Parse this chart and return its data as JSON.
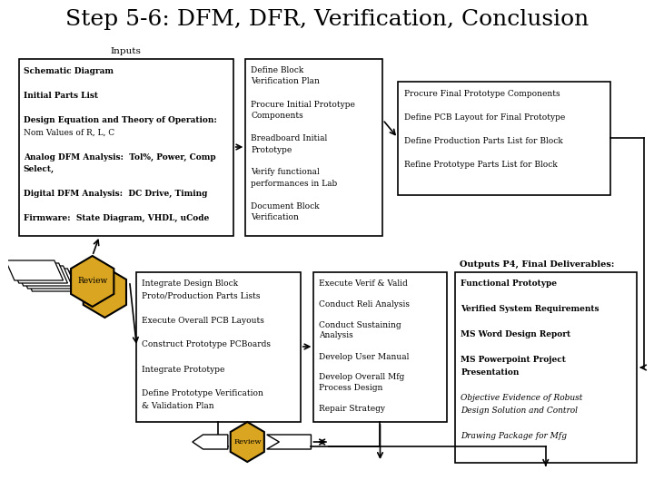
{
  "title": "Step 5-6: DFM, DFR, Verification, Conclusion",
  "title_fontsize": 18,
  "bg_color": "#ffffff",
  "gold_fill": "#DAA520",
  "inputs_label": "Inputs",
  "box6_title": "Outputs P4, Final Deliverables:",
  "review_text": "Review"
}
